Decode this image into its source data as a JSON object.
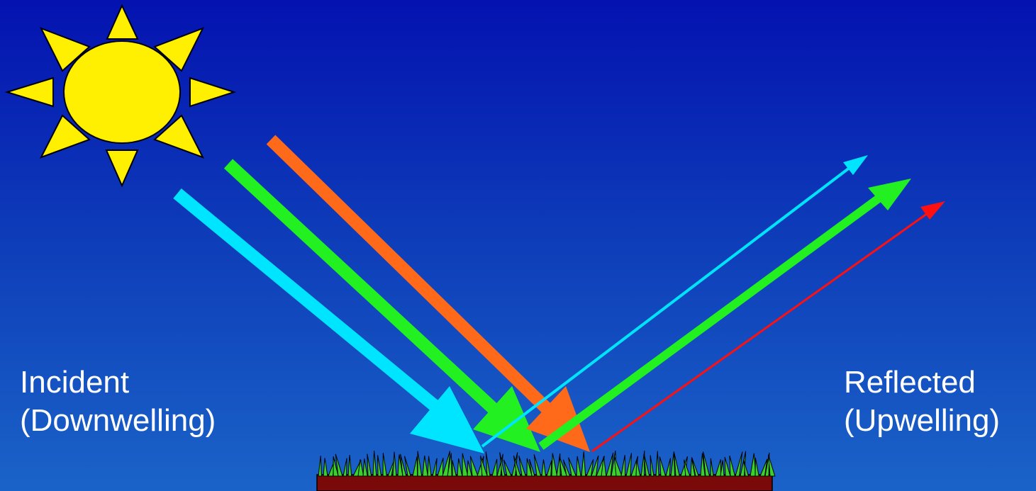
{
  "labels": {
    "incident": {
      "line1": "Incident",
      "line2": "(Downwelling)"
    },
    "reflected": {
      "line1": "Reflected",
      "line2": "(Upwelling)"
    }
  },
  "icons": [
    "sun-icon",
    "grass-icon"
  ],
  "colors": {
    "background_top": "#0412b0",
    "background_bottom": "#1a63c8",
    "sun": "#ffef00",
    "cyan_arrow": "#00e5ff",
    "green_arrow": "#22f020",
    "orange_arrow": "#ff6a1a",
    "red_arrow": "#ff1010",
    "grass": "#3ad22a",
    "soil": "#7a0a0a"
  }
}
